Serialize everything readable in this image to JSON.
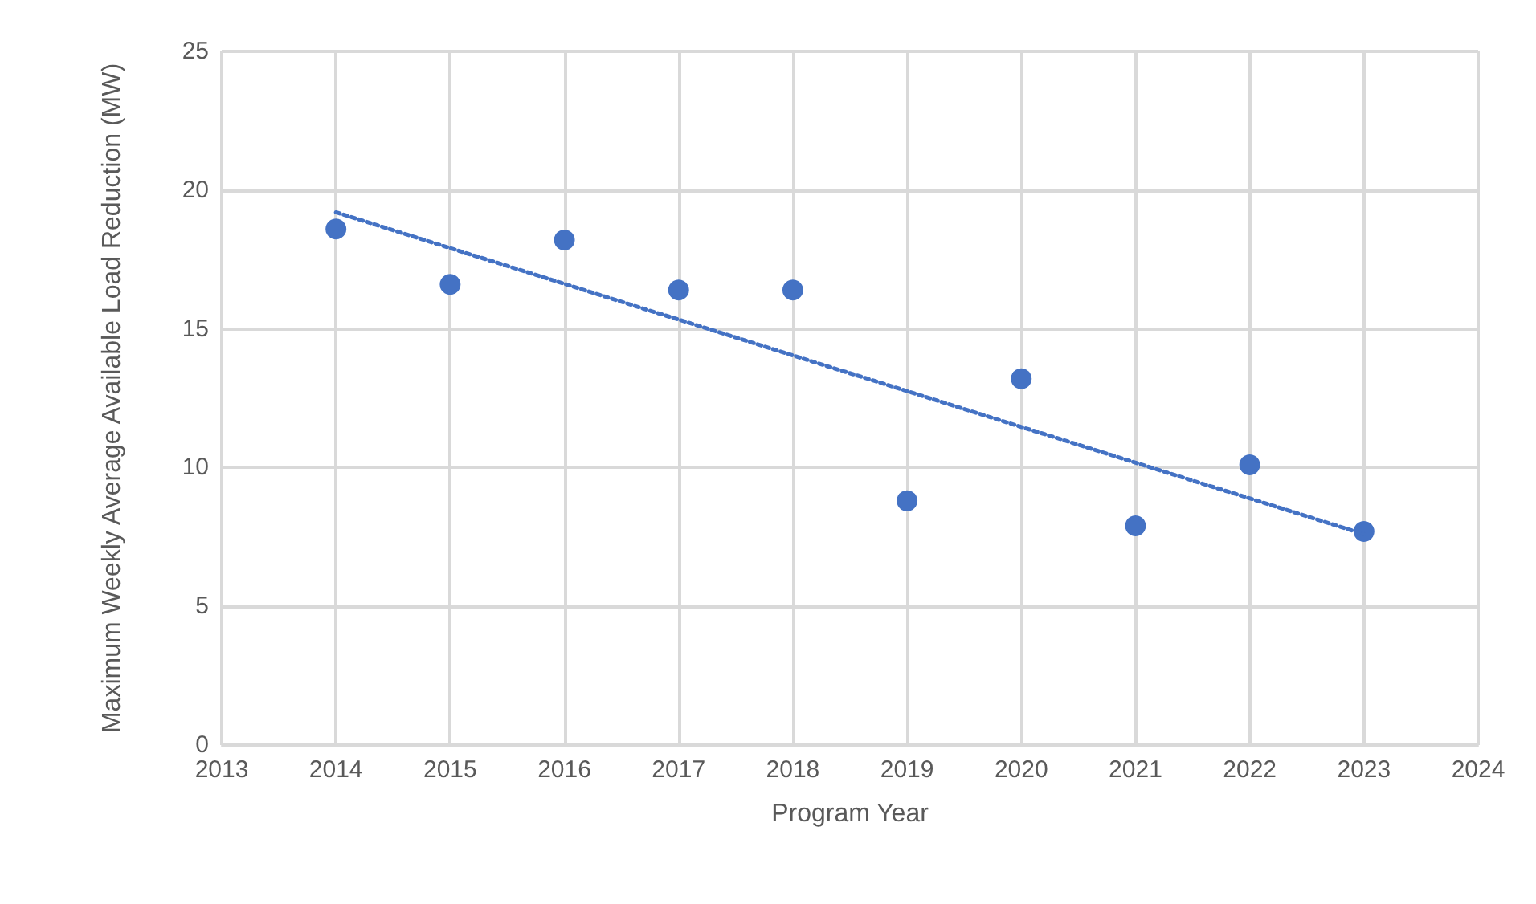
{
  "chart_data": {
    "type": "scatter",
    "xlabel": "Program Year",
    "ylabel": "Maximum Weekly Average Available Load Reduction (MW)",
    "x": [
      2014,
      2015,
      2016,
      2017,
      2018,
      2019,
      2020,
      2021,
      2022,
      2023
    ],
    "series": [
      {
        "color": "#4472c4",
        "marker": "circle",
        "values": [
          18.6,
          16.6,
          18.2,
          16.4,
          16.4,
          8.8,
          13.2,
          7.9,
          10.1,
          7.7
        ]
      },
      {
        "type": "line",
        "color": "#4472c4",
        "line_style": "dotted",
        "marker": "none",
        "x": [
          2014,
          2023
        ],
        "values": [
          19.2,
          7.6
        ]
      }
    ],
    "xlim": [
      2013,
      2024
    ],
    "xticks": [
      2013,
      2014,
      2015,
      2016,
      2017,
      2018,
      2019,
      2020,
      2021,
      2022,
      2023,
      2024
    ],
    "ylim": [
      0,
      25
    ],
    "yticks": [
      0,
      5,
      10,
      15,
      20,
      25
    ],
    "grid": true
  }
}
